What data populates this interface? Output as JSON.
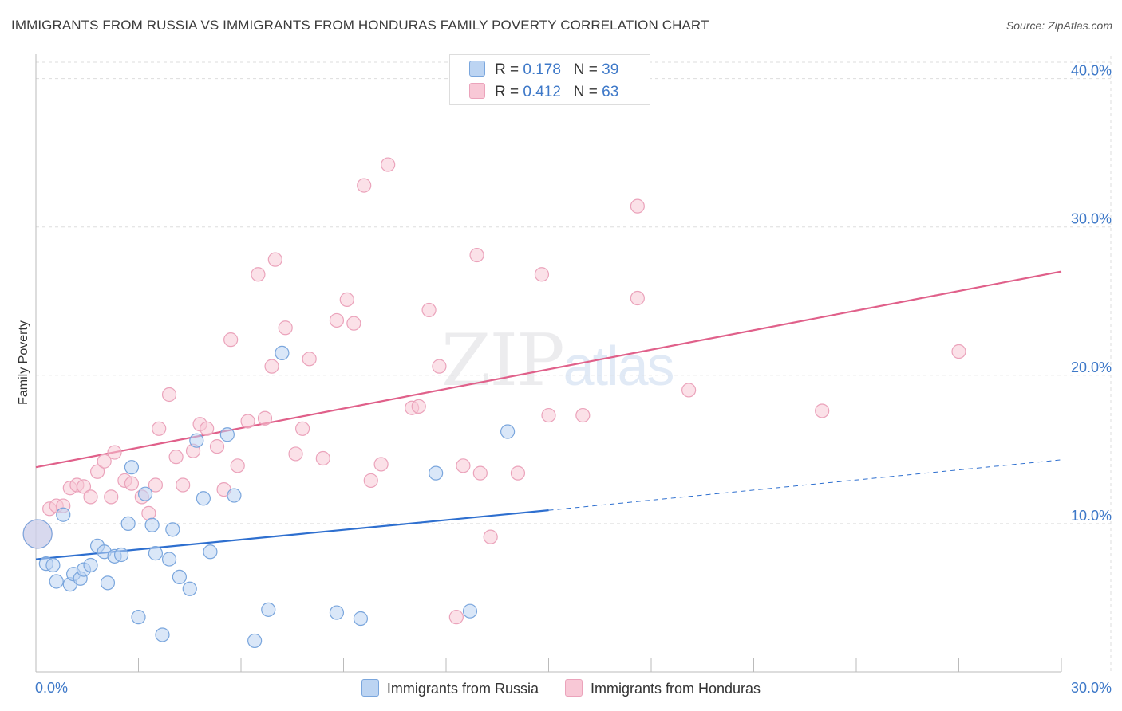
{
  "header": {
    "title": "IMMIGRANTS FROM RUSSIA VS IMMIGRANTS FROM HONDURAS FAMILY POVERTY CORRELATION CHART",
    "source": "Source: ZipAtlas.com"
  },
  "watermark": {
    "zip": "ZIP",
    "atlas": "atlas"
  },
  "legend_top": {
    "rows": [
      {
        "r_label": "R = ",
        "r_value": "0.178",
        "n_label": "N = ",
        "n_value": "39"
      },
      {
        "r_label": "R = ",
        "r_value": "0.412",
        "n_label": "N = ",
        "n_value": "63"
      }
    ]
  },
  "colors": {
    "russia_fill": "#bcd4f2",
    "russia_stroke": "#7aa6dd",
    "russia_line": "#2e6fcf",
    "honduras_fill": "#f8c8d6",
    "honduras_stroke": "#eba3bb",
    "honduras_line": "#e0608a",
    "grid": "#dddddd",
    "tick_label": "#3d78c8"
  },
  "chart_data": {
    "type": "scatter",
    "title": "IMMIGRANTS FROM RUSSIA VS IMMIGRANTS FROM HONDURAS FAMILY POVERTY CORRELATION CHART",
    "xlabel": "",
    "ylabel": "Family Poverty",
    "xlim": [
      0,
      30
    ],
    "ylim": [
      0,
      41
    ],
    "x_tick_labels": [
      "0.0%",
      "30.0%"
    ],
    "y_ticks": [
      10,
      20,
      30,
      40
    ],
    "y_tick_labels": [
      "10.0%",
      "20.0%",
      "30.0%",
      "40.0%"
    ],
    "grid": true,
    "legend_position": "bottom",
    "series": [
      {
        "name": "Immigrants from Russia",
        "r": 0.178,
        "n": 39,
        "trend": {
          "x0": 0,
          "y0": 7.6,
          "x1": 15,
          "y1": 10.9,
          "dashed_to_x": 30,
          "dashed_to_y": 14.3
        },
        "points": [
          [
            0.05,
            9.3,
            "large"
          ],
          [
            0.3,
            7.3
          ],
          [
            0.5,
            7.2
          ],
          [
            0.6,
            6.1
          ],
          [
            0.8,
            10.6
          ],
          [
            1.0,
            5.9
          ],
          [
            1.1,
            6.6
          ],
          [
            1.3,
            6.3
          ],
          [
            1.4,
            6.9
          ],
          [
            1.6,
            7.2
          ],
          [
            1.8,
            8.5
          ],
          [
            2.0,
            8.1
          ],
          [
            2.1,
            6.0
          ],
          [
            2.3,
            7.8
          ],
          [
            2.5,
            7.9
          ],
          [
            2.7,
            10.0
          ],
          [
            2.8,
            13.8
          ],
          [
            3.0,
            3.7
          ],
          [
            3.2,
            12.0
          ],
          [
            3.4,
            9.9
          ],
          [
            3.5,
            8.0
          ],
          [
            3.7,
            2.5
          ],
          [
            3.9,
            7.6
          ],
          [
            4.0,
            9.6
          ],
          [
            4.2,
            6.4
          ],
          [
            4.5,
            5.6
          ],
          [
            4.7,
            15.6
          ],
          [
            4.9,
            11.7
          ],
          [
            5.1,
            8.1
          ],
          [
            5.6,
            16.0
          ],
          [
            5.8,
            11.9
          ],
          [
            6.4,
            2.1
          ],
          [
            6.8,
            4.2
          ],
          [
            7.2,
            21.5
          ],
          [
            8.8,
            4.0
          ],
          [
            9.5,
            3.6
          ],
          [
            11.7,
            13.4
          ],
          [
            12.7,
            4.1
          ],
          [
            13.8,
            16.2
          ]
        ]
      },
      {
        "name": "Immigrants from Honduras",
        "r": 0.412,
        "n": 63,
        "trend": {
          "x0": 0,
          "y0": 13.8,
          "x1": 30,
          "y1": 27.0
        },
        "points": [
          [
            0.05,
            9.3,
            "large"
          ],
          [
            0.4,
            11.0
          ],
          [
            0.6,
            11.2
          ],
          [
            0.8,
            11.2
          ],
          [
            1.0,
            12.4
          ],
          [
            1.2,
            12.6
          ],
          [
            1.4,
            12.5
          ],
          [
            1.6,
            11.8
          ],
          [
            1.8,
            13.5
          ],
          [
            2.0,
            14.2
          ],
          [
            2.2,
            11.8
          ],
          [
            2.3,
            14.8
          ],
          [
            2.6,
            12.9
          ],
          [
            2.8,
            12.7
          ],
          [
            3.1,
            11.8
          ],
          [
            3.3,
            10.7
          ],
          [
            3.5,
            12.6
          ],
          [
            3.6,
            16.4
          ],
          [
            3.9,
            18.7
          ],
          [
            4.1,
            14.5
          ],
          [
            4.3,
            12.6
          ],
          [
            4.6,
            14.9
          ],
          [
            4.8,
            16.7
          ],
          [
            5.0,
            16.4
          ],
          [
            5.3,
            15.2
          ],
          [
            5.5,
            12.3
          ],
          [
            5.7,
            22.4
          ],
          [
            5.9,
            13.9
          ],
          [
            6.2,
            16.9
          ],
          [
            6.5,
            26.8
          ],
          [
            6.7,
            17.1
          ],
          [
            6.9,
            20.6
          ],
          [
            7.0,
            27.8
          ],
          [
            7.3,
            23.2
          ],
          [
            7.6,
            14.7
          ],
          [
            7.8,
            16.4
          ],
          [
            8.0,
            21.1
          ],
          [
            8.4,
            14.4
          ],
          [
            8.8,
            23.7
          ],
          [
            9.1,
            25.1
          ],
          [
            9.3,
            23.5
          ],
          [
            9.6,
            32.8
          ],
          [
            9.8,
            12.9
          ],
          [
            10.1,
            14.0
          ],
          [
            10.3,
            34.2
          ],
          [
            11.0,
            17.8
          ],
          [
            11.2,
            17.9
          ],
          [
            11.5,
            24.4
          ],
          [
            11.8,
            20.6
          ],
          [
            12.3,
            3.7
          ],
          [
            12.5,
            13.9
          ],
          [
            12.9,
            28.1
          ],
          [
            13.0,
            13.4
          ],
          [
            13.3,
            9.1
          ],
          [
            14.1,
            13.4
          ],
          [
            14.8,
            26.8
          ],
          [
            15.0,
            17.3
          ],
          [
            16.0,
            17.3
          ],
          [
            17.6,
            31.4
          ],
          [
            17.6,
            25.2
          ],
          [
            19.1,
            19.0
          ],
          [
            23.0,
            17.6
          ],
          [
            27.0,
            21.6
          ]
        ]
      }
    ]
  },
  "legend_bottom": {
    "items": [
      "Immigrants from Russia",
      "Immigrants from Honduras"
    ]
  }
}
